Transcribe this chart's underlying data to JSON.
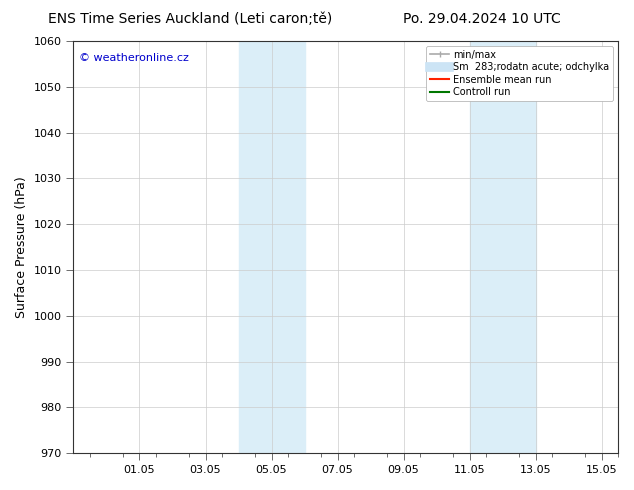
{
  "title_left": "ENS Time Series Auckland (Leti caron;tě)",
  "title_right": "Po. 29.04.2024 10 UTC",
  "ylabel": "Surface Pressure (hPa)",
  "ylim": [
    970,
    1060
  ],
  "yticks": [
    970,
    980,
    990,
    1000,
    1010,
    1020,
    1030,
    1040,
    1050,
    1060
  ],
  "xtick_labels": [
    "01.05",
    "03.05",
    "05.05",
    "07.05",
    "09.05",
    "11.05",
    "13.05",
    "15.05"
  ],
  "xtick_positions": [
    2.5,
    4.5,
    6.5,
    8.5,
    10.5,
    12.5,
    14.5,
    16.5
  ],
  "xlim": [
    0.5,
    17.0
  ],
  "shaded_regions": [
    {
      "x_start": 5.5,
      "x_end": 7.5,
      "color": "#dbeef8"
    },
    {
      "x_start": 12.5,
      "x_end": 14.5,
      "color": "#dbeef8"
    }
  ],
  "watermark_text": "© weatheronline.cz",
  "watermark_color": "#0000cc",
  "legend_items": [
    {
      "label": "min/max",
      "color": "#aaaaaa",
      "lw": 1.2
    },
    {
      "label": "Sm  283;rodatn acute; odchylka",
      "color": "#cce4f5",
      "lw": 7
    },
    {
      "label": "Ensemble mean run",
      "color": "#ff2200",
      "lw": 1.5
    },
    {
      "label": "Controll run",
      "color": "#007700",
      "lw": 1.5
    }
  ],
  "background_color": "#ffffff",
  "plot_bg_color": "#ffffff",
  "grid_color": "#cccccc",
  "title_fontsize": 10,
  "tick_fontsize": 8,
  "ylabel_fontsize": 9,
  "watermark_fontsize": 8
}
